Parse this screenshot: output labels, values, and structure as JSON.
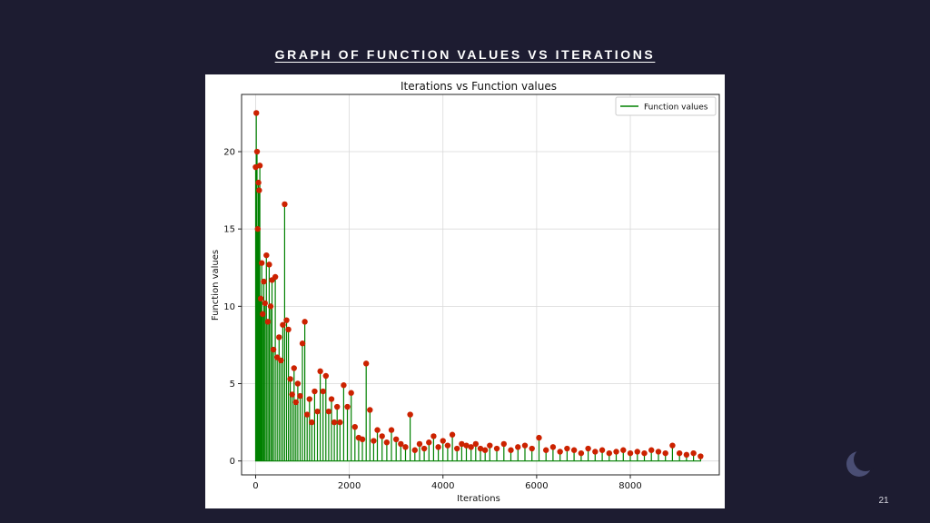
{
  "slide": {
    "title": "GRAPH OF FUNCTION VALUES VS ITERATIONS",
    "page_number": "21"
  },
  "chart_data": {
    "type": "line",
    "title": "Iterations vs Function values",
    "xlabel": "Iterations",
    "ylabel": "Function values",
    "xlim": [
      -300,
      9900
    ],
    "ylim": [
      -0.9,
      23.7
    ],
    "xticks": [
      0,
      2000,
      4000,
      6000,
      8000
    ],
    "yticks": [
      0,
      5,
      10,
      15,
      20
    ],
    "grid": true,
    "legend_position": "top-right",
    "line_color": "#008000",
    "marker_color": "#cc2200",
    "series": [
      {
        "name": "Function values",
        "x": [
          0,
          15,
          30,
          45,
          60,
          75,
          90,
          110,
          130,
          150,
          175,
          200,
          230,
          260,
          290,
          320,
          350,
          380,
          420,
          460,
          500,
          540,
          580,
          620,
          660,
          700,
          740,
          780,
          820,
          860,
          900,
          950,
          1000,
          1050,
          1100,
          1150,
          1200,
          1260,
          1320,
          1380,
          1440,
          1500,
          1560,
          1620,
          1680,
          1740,
          1800,
          1880,
          1960,
          2040,
          2120,
          2200,
          2280,
          2360,
          2440,
          2520,
          2600,
          2700,
          2800,
          2900,
          3000,
          3100,
          3200,
          3300,
          3400,
          3500,
          3600,
          3700,
          3800,
          3900,
          4000,
          4100,
          4200,
          4300,
          4400,
          4500,
          4600,
          4700,
          4800,
          4900,
          5000,
          5150,
          5300,
          5450,
          5600,
          5750,
          5900,
          6050,
          6200,
          6350,
          6500,
          6650,
          6800,
          6950,
          7100,
          7250,
          7400,
          7550,
          7700,
          7850,
          8000,
          8150,
          8300,
          8450,
          8600,
          8750,
          8900,
          9050,
          9200,
          9350,
          9500
        ],
        "y": [
          19,
          22.5,
          20,
          15,
          18,
          17.5,
          19.1,
          10.5,
          12.8,
          9.5,
          11.6,
          10.2,
          13.3,
          9,
          12.7,
          10,
          11.7,
          7.2,
          11.9,
          6.7,
          8,
          6.5,
          8.8,
          16.6,
          9.1,
          8.5,
          5.3,
          4.3,
          6,
          3.8,
          5,
          4.2,
          7.6,
          9,
          3,
          4,
          2.5,
          4.5,
          3.2,
          5.8,
          4.5,
          5.5,
          3.2,
          4,
          2.5,
          3.5,
          2.5,
          4.9,
          3.5,
          4.4,
          2.2,
          1.5,
          1.4,
          6.3,
          3.3,
          1.3,
          2,
          1.6,
          1.2,
          2,
          1.4,
          1.1,
          0.9,
          3,
          0.7,
          1.1,
          0.8,
          1.2,
          1.6,
          0.9,
          1.3,
          1,
          1.7,
          0.8,
          1.1,
          1,
          0.9,
          1.1,
          0.8,
          0.7,
          1,
          0.8,
          1.1,
          0.7,
          0.9,
          1,
          0.8,
          1.5,
          0.7,
          0.9,
          0.6,
          0.8,
          0.7,
          0.5,
          0.8,
          0.6,
          0.7,
          0.5,
          0.6,
          0.7,
          0.5,
          0.6,
          0.5,
          0.7,
          0.6,
          0.5,
          1,
          0.5,
          0.4,
          0.5,
          0.3
        ]
      }
    ]
  }
}
